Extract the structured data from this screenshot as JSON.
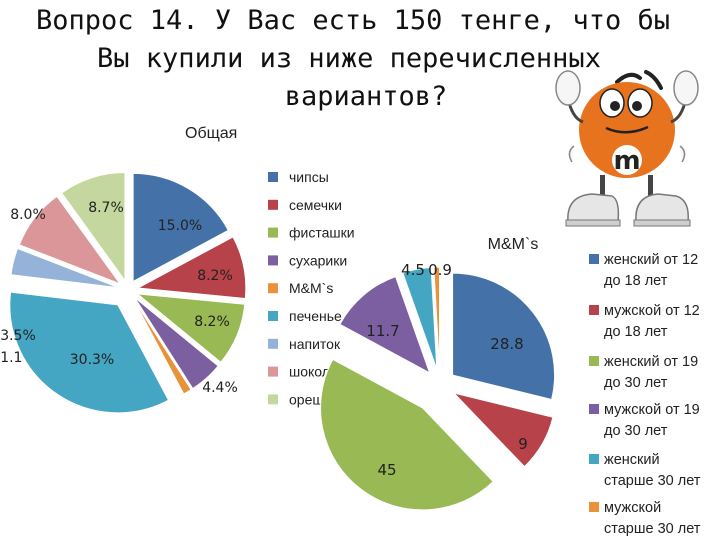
{
  "title_lines": [
    "Вопрос 14.  У Вас есть 150 тенге, что бы",
    "Вы купили из ниже перечисленных",
    "вариантов?"
  ],
  "colors": {
    "blue": "#4472A8",
    "red": "#B8424A",
    "green": "#98B954",
    "purple": "#7B5FA0",
    "teal": "#44A6C2",
    "orange": "#E8923A",
    "lightblue": "#95B3D8",
    "pink": "#DA9698",
    "lightgreen": "#C4D79E",
    "mascot": "#E8731E"
  },
  "mascot": {
    "letter": "m",
    "icon": "mm-mascot-icon"
  },
  "chart_data": [
    {
      "type": "pie",
      "title": "Общая",
      "categories": [
        "чипсы",
        "семечки",
        "фисташки",
        "сухарики",
        "M&M`s",
        "печенье",
        "напиток",
        "шоколад",
        "орешки"
      ],
      "values": [
        15.0,
        8.2,
        8.2,
        4.4,
        1.1,
        30.3,
        3.5,
        8.0,
        8.7
      ],
      "data_labels": [
        "15.0%",
        "8.2%",
        "8.2%",
        "4.4%",
        "1.1%",
        "30.3%",
        "3.5%",
        "8.0%",
        "8.7%"
      ],
      "exploded": true,
      "legend": "right"
    },
    {
      "type": "pie",
      "title": "M&M`s",
      "categories": [
        "женский от 12 до 18 лет",
        "мужской от 12 до 18 лет",
        "женский от 19 до 30 лет",
        "мужской от 19 до 30 лет",
        "женский старше 30 лет",
        "мужской старше 30 лет"
      ],
      "values": [
        28.8,
        9,
        45,
        11.7,
        4.5,
        0.9
      ],
      "data_labels": [
        "28.8",
        "9",
        "45",
        "11.7",
        "4.5",
        "0.9"
      ],
      "exploded": true,
      "legend": "right"
    }
  ]
}
